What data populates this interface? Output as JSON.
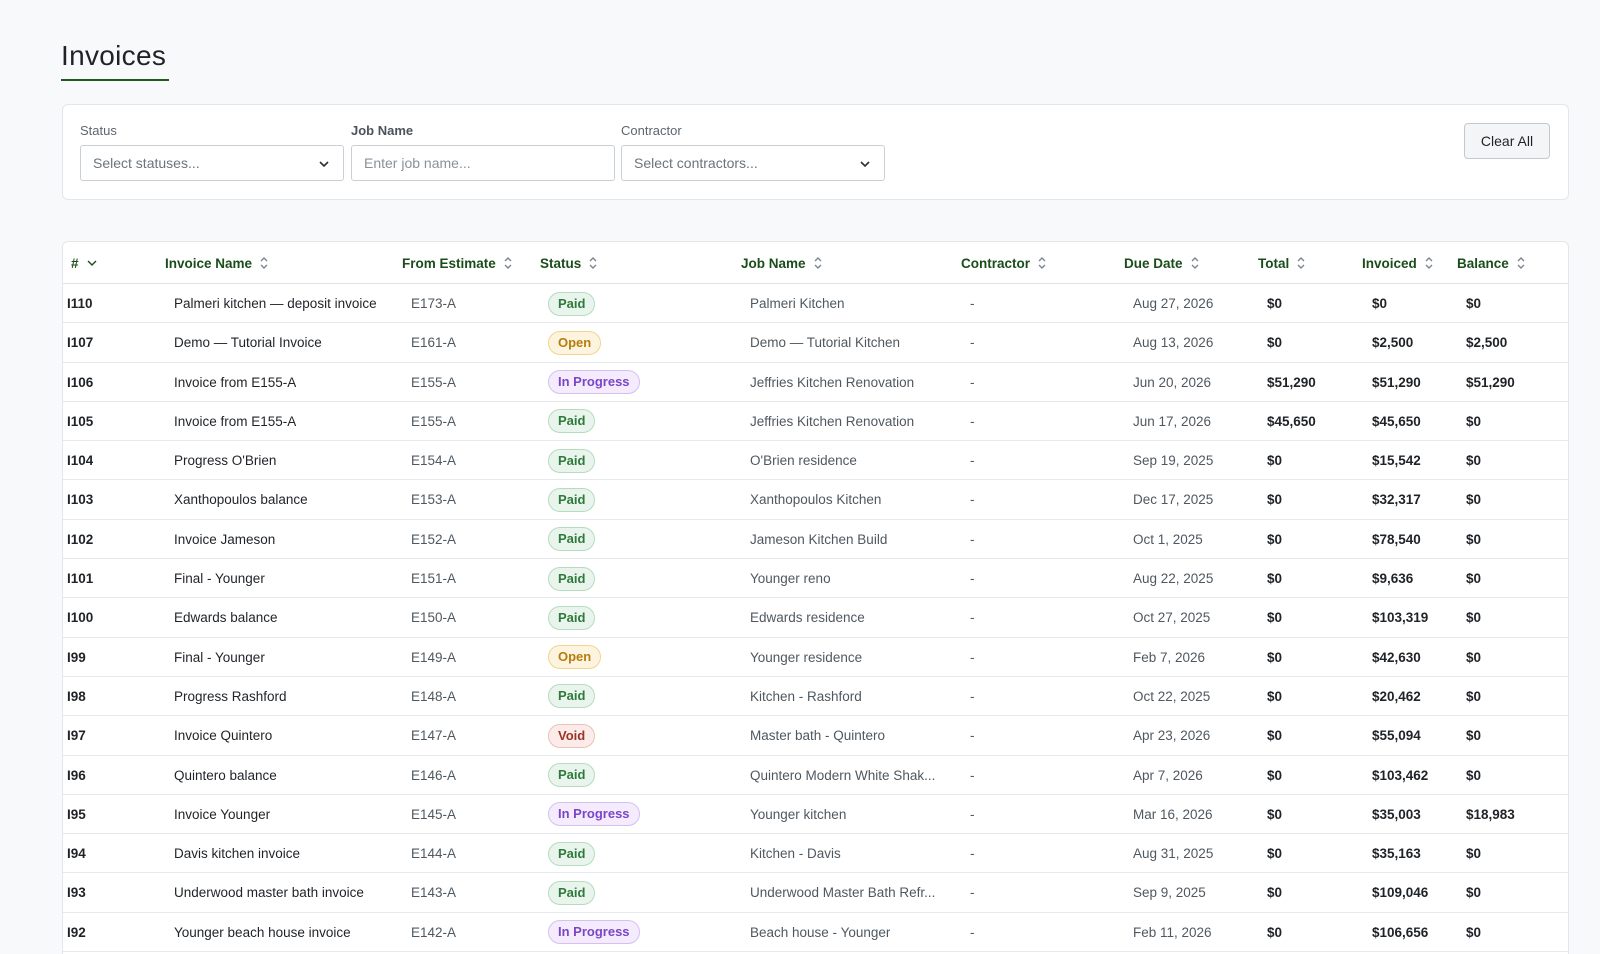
{
  "page": {
    "title": "Invoices"
  },
  "filters": {
    "status": {
      "label": "Status",
      "placeholder": "Select statuses..."
    },
    "job_name": {
      "label": "Job Name",
      "placeholder": "Enter job name..."
    },
    "contractor": {
      "label": "Contractor",
      "placeholder": "Select contractors..."
    },
    "clear_label": "Clear All"
  },
  "table": {
    "columns": [
      "#",
      "Invoice Name",
      "From Estimate",
      "Status",
      "Job Name",
      "Contractor",
      "Due Date",
      "Total",
      "Invoiced",
      "Balance"
    ],
    "rows": [
      {
        "num": "I110",
        "name": "Palmeri kitchen — deposit invoice",
        "estimate": "E173-A",
        "status": "Paid",
        "status_kind": "paid",
        "job": "Palmeri Kitchen",
        "contractor": "-",
        "due": "Aug 27, 2026",
        "total": "$0",
        "invoiced": "$0",
        "balance": "$0"
      },
      {
        "num": "I107",
        "name": "Demo — Tutorial Invoice",
        "estimate": "E161-A",
        "status": "Open",
        "status_kind": "open",
        "job": "Demo — Tutorial Kitchen",
        "contractor": "-",
        "due": "Aug 13, 2026",
        "total": "$0",
        "invoiced": "$2,500",
        "balance": "$2,500"
      },
      {
        "num": "I106",
        "name": "Invoice from E155-A",
        "estimate": "E155-A",
        "status": "In Progress",
        "status_kind": "progress",
        "job": "Jeffries Kitchen Renovation",
        "contractor": "-",
        "due": "Jun 20, 2026",
        "total": "$51,290",
        "invoiced": "$51,290",
        "balance": "$51,290"
      },
      {
        "num": "I105",
        "name": "Invoice from E155-A",
        "estimate": "E155-A",
        "status": "Paid",
        "status_kind": "paid",
        "job": "Jeffries Kitchen Renovation",
        "contractor": "-",
        "due": "Jun 17, 2026",
        "total": "$45,650",
        "invoiced": "$45,650",
        "balance": "$0"
      },
      {
        "num": "I104",
        "name": "Progress O'Brien",
        "estimate": "E154-A",
        "status": "Paid",
        "status_kind": "paid",
        "job": "O'Brien residence",
        "contractor": "-",
        "due": "Sep 19, 2025",
        "total": "$0",
        "invoiced": "$15,542",
        "balance": "$0"
      },
      {
        "num": "I103",
        "name": "Xanthopoulos balance",
        "estimate": "E153-A",
        "status": "Paid",
        "status_kind": "paid",
        "job": "Xanthopoulos Kitchen",
        "contractor": "-",
        "due": "Dec 17, 2025",
        "total": "$0",
        "invoiced": "$32,317",
        "balance": "$0"
      },
      {
        "num": "I102",
        "name": "Invoice Jameson",
        "estimate": "E152-A",
        "status": "Paid",
        "status_kind": "paid",
        "job": "Jameson Kitchen Build",
        "contractor": "-",
        "due": "Oct 1, 2025",
        "total": "$0",
        "invoiced": "$78,540",
        "balance": "$0"
      },
      {
        "num": "I101",
        "name": "Final - Younger",
        "estimate": "E151-A",
        "status": "Paid",
        "status_kind": "paid",
        "job": "Younger reno",
        "contractor": "-",
        "due": "Aug 22, 2025",
        "total": "$0",
        "invoiced": "$9,636",
        "balance": "$0"
      },
      {
        "num": "I100",
        "name": "Edwards balance",
        "estimate": "E150-A",
        "status": "Paid",
        "status_kind": "paid",
        "job": "Edwards residence",
        "contractor": "-",
        "due": "Oct 27, 2025",
        "total": "$0",
        "invoiced": "$103,319",
        "balance": "$0"
      },
      {
        "num": "I99",
        "name": "Final - Younger",
        "estimate": "E149-A",
        "status": "Open",
        "status_kind": "open",
        "job": "Younger residence",
        "contractor": "-",
        "due": "Feb 7, 2026",
        "total": "$0",
        "invoiced": "$42,630",
        "balance": "$0"
      },
      {
        "num": "I98",
        "name": "Progress Rashford",
        "estimate": "E148-A",
        "status": "Paid",
        "status_kind": "paid",
        "job": "Kitchen - Rashford",
        "contractor": "-",
        "due": "Oct 22, 2025",
        "total": "$0",
        "invoiced": "$20,462",
        "balance": "$0"
      },
      {
        "num": "I97",
        "name": "Invoice Quintero",
        "estimate": "E147-A",
        "status": "Void",
        "status_kind": "void",
        "job": "Master bath - Quintero",
        "contractor": "-",
        "due": "Apr 23, 2026",
        "total": "$0",
        "invoiced": "$55,094",
        "balance": "$0"
      },
      {
        "num": "I96",
        "name": "Quintero balance",
        "estimate": "E146-A",
        "status": "Paid",
        "status_kind": "paid",
        "job": "Quintero Modern White Shak...",
        "contractor": "-",
        "due": "Apr 7, 2026",
        "total": "$0",
        "invoiced": "$103,462",
        "balance": "$0"
      },
      {
        "num": "I95",
        "name": "Invoice Younger",
        "estimate": "E145-A",
        "status": "In Progress",
        "status_kind": "progress",
        "job": "Younger kitchen",
        "contractor": "-",
        "due": "Mar 16, 2026",
        "total": "$0",
        "invoiced": "$35,003",
        "balance": "$18,983"
      },
      {
        "num": "I94",
        "name": "Davis kitchen invoice",
        "estimate": "E144-A",
        "status": "Paid",
        "status_kind": "paid",
        "job": "Kitchen - Davis",
        "contractor": "-",
        "due": "Aug 31, 2025",
        "total": "$0",
        "invoiced": "$35,163",
        "balance": "$0"
      },
      {
        "num": "I93",
        "name": "Underwood master bath invoice",
        "estimate": "E143-A",
        "status": "Paid",
        "status_kind": "paid",
        "job": "Underwood Master Bath Refr...",
        "contractor": "-",
        "due": "Sep 9, 2025",
        "total": "$0",
        "invoiced": "$109,046",
        "balance": "$0"
      },
      {
        "num": "I92",
        "name": "Younger beach house invoice",
        "estimate": "E142-A",
        "status": "In Progress",
        "status_kind": "progress",
        "job": "Beach house - Younger",
        "contractor": "-",
        "due": "Feb 11, 2026",
        "total": "$0",
        "invoiced": "$106,656",
        "balance": "$0"
      }
    ]
  },
  "colors": {
    "accent": "#1e5a1e",
    "header_text": "#1a4d1a"
  },
  "icons": {
    "sort": "sort-icon",
    "sorted_desc": "chevron-down-icon",
    "dropdown": "chevron-down-icon"
  }
}
